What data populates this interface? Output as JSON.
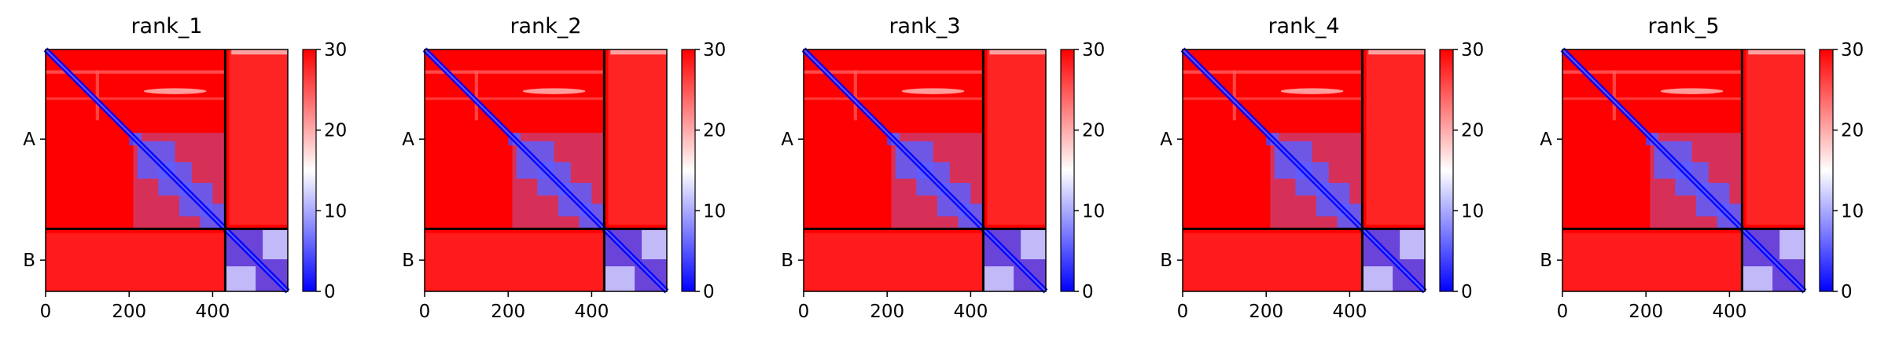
{
  "chart_data": [
    {
      "type": "heatmap",
      "title": "rank_1",
      "xlabel": "",
      "ylabel": "",
      "xlim": [
        0,
        580
      ],
      "x_ticks": [
        0,
        200,
        400
      ],
      "chains": [
        {
          "label": "A",
          "start": 0,
          "end": 430
        },
        {
          "label": "B",
          "start": 430,
          "end": 580
        }
      ],
      "chain_boundary": 430,
      "colorbar": {
        "min": 0,
        "max": 30,
        "ticks": [
          0,
          10,
          20,
          30
        ],
        "colors": [
          "#0000ff",
          "#ffffff",
          "#ff0000"
        ]
      }
    },
    {
      "type": "heatmap",
      "title": "rank_2",
      "xlabel": "",
      "ylabel": "",
      "xlim": [
        0,
        580
      ],
      "x_ticks": [
        0,
        200,
        400
      ],
      "chains": [
        {
          "label": "A",
          "start": 0,
          "end": 430
        },
        {
          "label": "B",
          "start": 430,
          "end": 580
        }
      ],
      "chain_boundary": 430,
      "colorbar": {
        "min": 0,
        "max": 30,
        "ticks": [
          0,
          10,
          20,
          30
        ],
        "colors": [
          "#0000ff",
          "#ffffff",
          "#ff0000"
        ]
      }
    },
    {
      "type": "heatmap",
      "title": "rank_3",
      "xlabel": "",
      "ylabel": "",
      "xlim": [
        0,
        580
      ],
      "x_ticks": [
        0,
        200,
        400
      ],
      "chains": [
        {
          "label": "A",
          "start": 0,
          "end": 430
        },
        {
          "label": "B",
          "start": 430,
          "end": 580
        }
      ],
      "chain_boundary": 430,
      "colorbar": {
        "min": 0,
        "max": 30,
        "ticks": [
          0,
          10,
          20,
          30
        ],
        "colors": [
          "#0000ff",
          "#ffffff",
          "#ff0000"
        ]
      }
    },
    {
      "type": "heatmap",
      "title": "rank_4",
      "xlabel": "",
      "ylabel": "",
      "xlim": [
        0,
        580
      ],
      "x_ticks": [
        0,
        200,
        400
      ],
      "chains": [
        {
          "label": "A",
          "start": 0,
          "end": 430
        },
        {
          "label": "B",
          "start": 430,
          "end": 580
        }
      ],
      "chain_boundary": 430,
      "colorbar": {
        "min": 0,
        "max": 30,
        "ticks": [
          0,
          10,
          20,
          30
        ],
        "colors": [
          "#0000ff",
          "#ffffff",
          "#ff0000"
        ]
      }
    },
    {
      "type": "heatmap",
      "title": "rank_5",
      "xlabel": "",
      "ylabel": "",
      "xlim": [
        0,
        580
      ],
      "x_ticks": [
        0,
        200,
        400
      ],
      "chains": [
        {
          "label": "A",
          "start": 0,
          "end": 430
        },
        {
          "label": "B",
          "start": 430,
          "end": 580
        }
      ],
      "chain_boundary": 430,
      "colorbar": {
        "min": 0,
        "max": 30,
        "ticks": [
          0,
          10,
          20,
          30
        ],
        "colors": [
          "#0000ff",
          "#ffffff",
          "#ff0000"
        ]
      }
    }
  ]
}
